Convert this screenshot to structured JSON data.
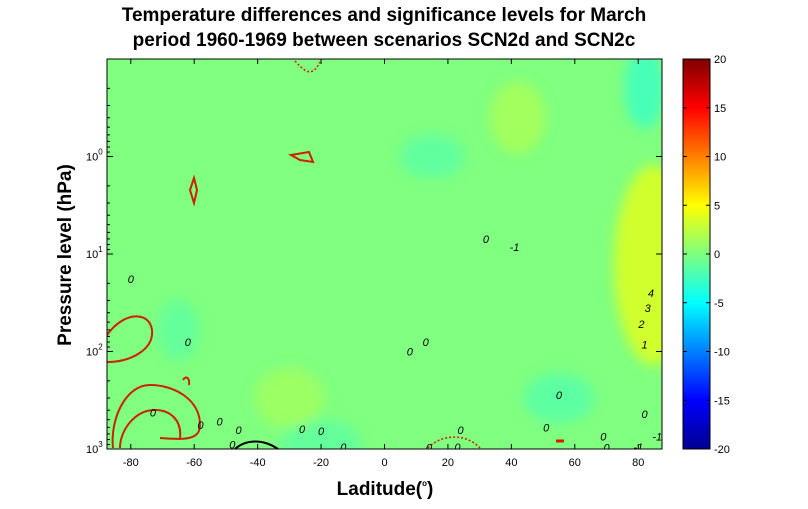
{
  "chart_data": {
    "type": "heatmap",
    "title": [
      "Temperature differences and significance levels for March",
      "period 1960-1969 between scenarios SCN2d and SCN2c"
    ],
    "xlabel": "Laditude(",
    "xlabel_sup": "o",
    "xlabel_end": ")",
    "ylabel": "Pressure level (hPa)",
    "x_ticks": [
      -80,
      -60,
      -40,
      -20,
      0,
      20,
      40,
      60,
      80
    ],
    "x_tick_labels": [
      "-80",
      "-60",
      "-40",
      "-20",
      "0",
      "20",
      "40",
      "60",
      "80"
    ],
    "xlim": [
      -87.5,
      87.5
    ],
    "y_scale": "log",
    "y_reversed": true,
    "ylim": [
      0.1,
      1000
    ],
    "y_ticks": [
      1,
      10,
      100,
      1000
    ],
    "y_tick_base": "10",
    "y_tick_exponents": [
      "0",
      "1",
      "2",
      "3"
    ],
    "colorbar": {
      "min": -20,
      "max": 20,
      "ticks": [
        20,
        15,
        10,
        5,
        0,
        -5,
        -10,
        -15,
        -20
      ],
      "tick_labels": [
        "20",
        "15",
        "10",
        "5",
        "0",
        "-5",
        "-10",
        "-15",
        "-20"
      ],
      "colormap": "jet"
    },
    "field": {
      "background_value": 0,
      "regions": [
        {
          "x": 42,
          "p": 0.4,
          "value": 1.5
        },
        {
          "x": 15,
          "p": 1.0,
          "value": -1.3
        },
        {
          "x": 85,
          "p": 13,
          "value": 3.5
        },
        {
          "x": 82,
          "p": 0.2,
          "value": -2.5
        },
        {
          "x": 55,
          "p": 300,
          "value": -1.5
        },
        {
          "x": -20,
          "p": 900,
          "value": -1.2
        },
        {
          "x": -30,
          "p": 300,
          "value": 1.2
        },
        {
          "x": -65,
          "p": 60,
          "value": -1.2
        }
      ]
    },
    "contour_labels": [
      {
        "text": "0",
        "x": -80,
        "p": 18
      },
      {
        "text": "0",
        "x": -62,
        "p": 80
      },
      {
        "text": "0",
        "x": -58,
        "p": 570
      },
      {
        "text": "0",
        "x": -52,
        "p": 520
      },
      {
        "text": "0",
        "x": -46,
        "p": 640
      },
      {
        "text": "0",
        "x": -26,
        "p": 620
      },
      {
        "text": "0",
        "x": -20,
        "p": 650
      },
      {
        "text": "0",
        "x": -48,
        "p": 900
      },
      {
        "text": "0",
        "x": -13,
        "p": 950
      },
      {
        "text": "0",
        "x": 14,
        "p": 960
      },
      {
        "text": "0",
        "x": 23,
        "p": 950
      },
      {
        "text": "0",
        "x": 13,
        "p": 80
      },
      {
        "text": "0",
        "x": 8,
        "p": 100
      },
      {
        "text": "0",
        "x": 32,
        "p": 7
      },
      {
        "text": "-1",
        "x": 41,
        "p": 8.5
      },
      {
        "text": "0",
        "x": 24,
        "p": 640
      },
      {
        "text": "0",
        "x": 55,
        "p": 280
      },
      {
        "text": "0",
        "x": 51,
        "p": 600
      },
      {
        "text": "0",
        "x": 69,
        "p": 740
      },
      {
        "text": "0",
        "x": 70,
        "p": 960
      },
      {
        "text": "0",
        "x": 82,
        "p": 440
      },
      {
        "text": "-1",
        "x": 80,
        "p": 950
      },
      {
        "text": "1",
        "x": 82,
        "p": 85
      },
      {
        "text": "2",
        "x": 81,
        "p": 52
      },
      {
        "text": "3",
        "x": 83,
        "p": 36
      },
      {
        "text": "4",
        "x": 84,
        "p": 25
      },
      {
        "text": "-1",
        "x": 86,
        "p": 740
      },
      {
        "text": "0",
        "x": -73,
        "p": 420
      }
    ]
  }
}
